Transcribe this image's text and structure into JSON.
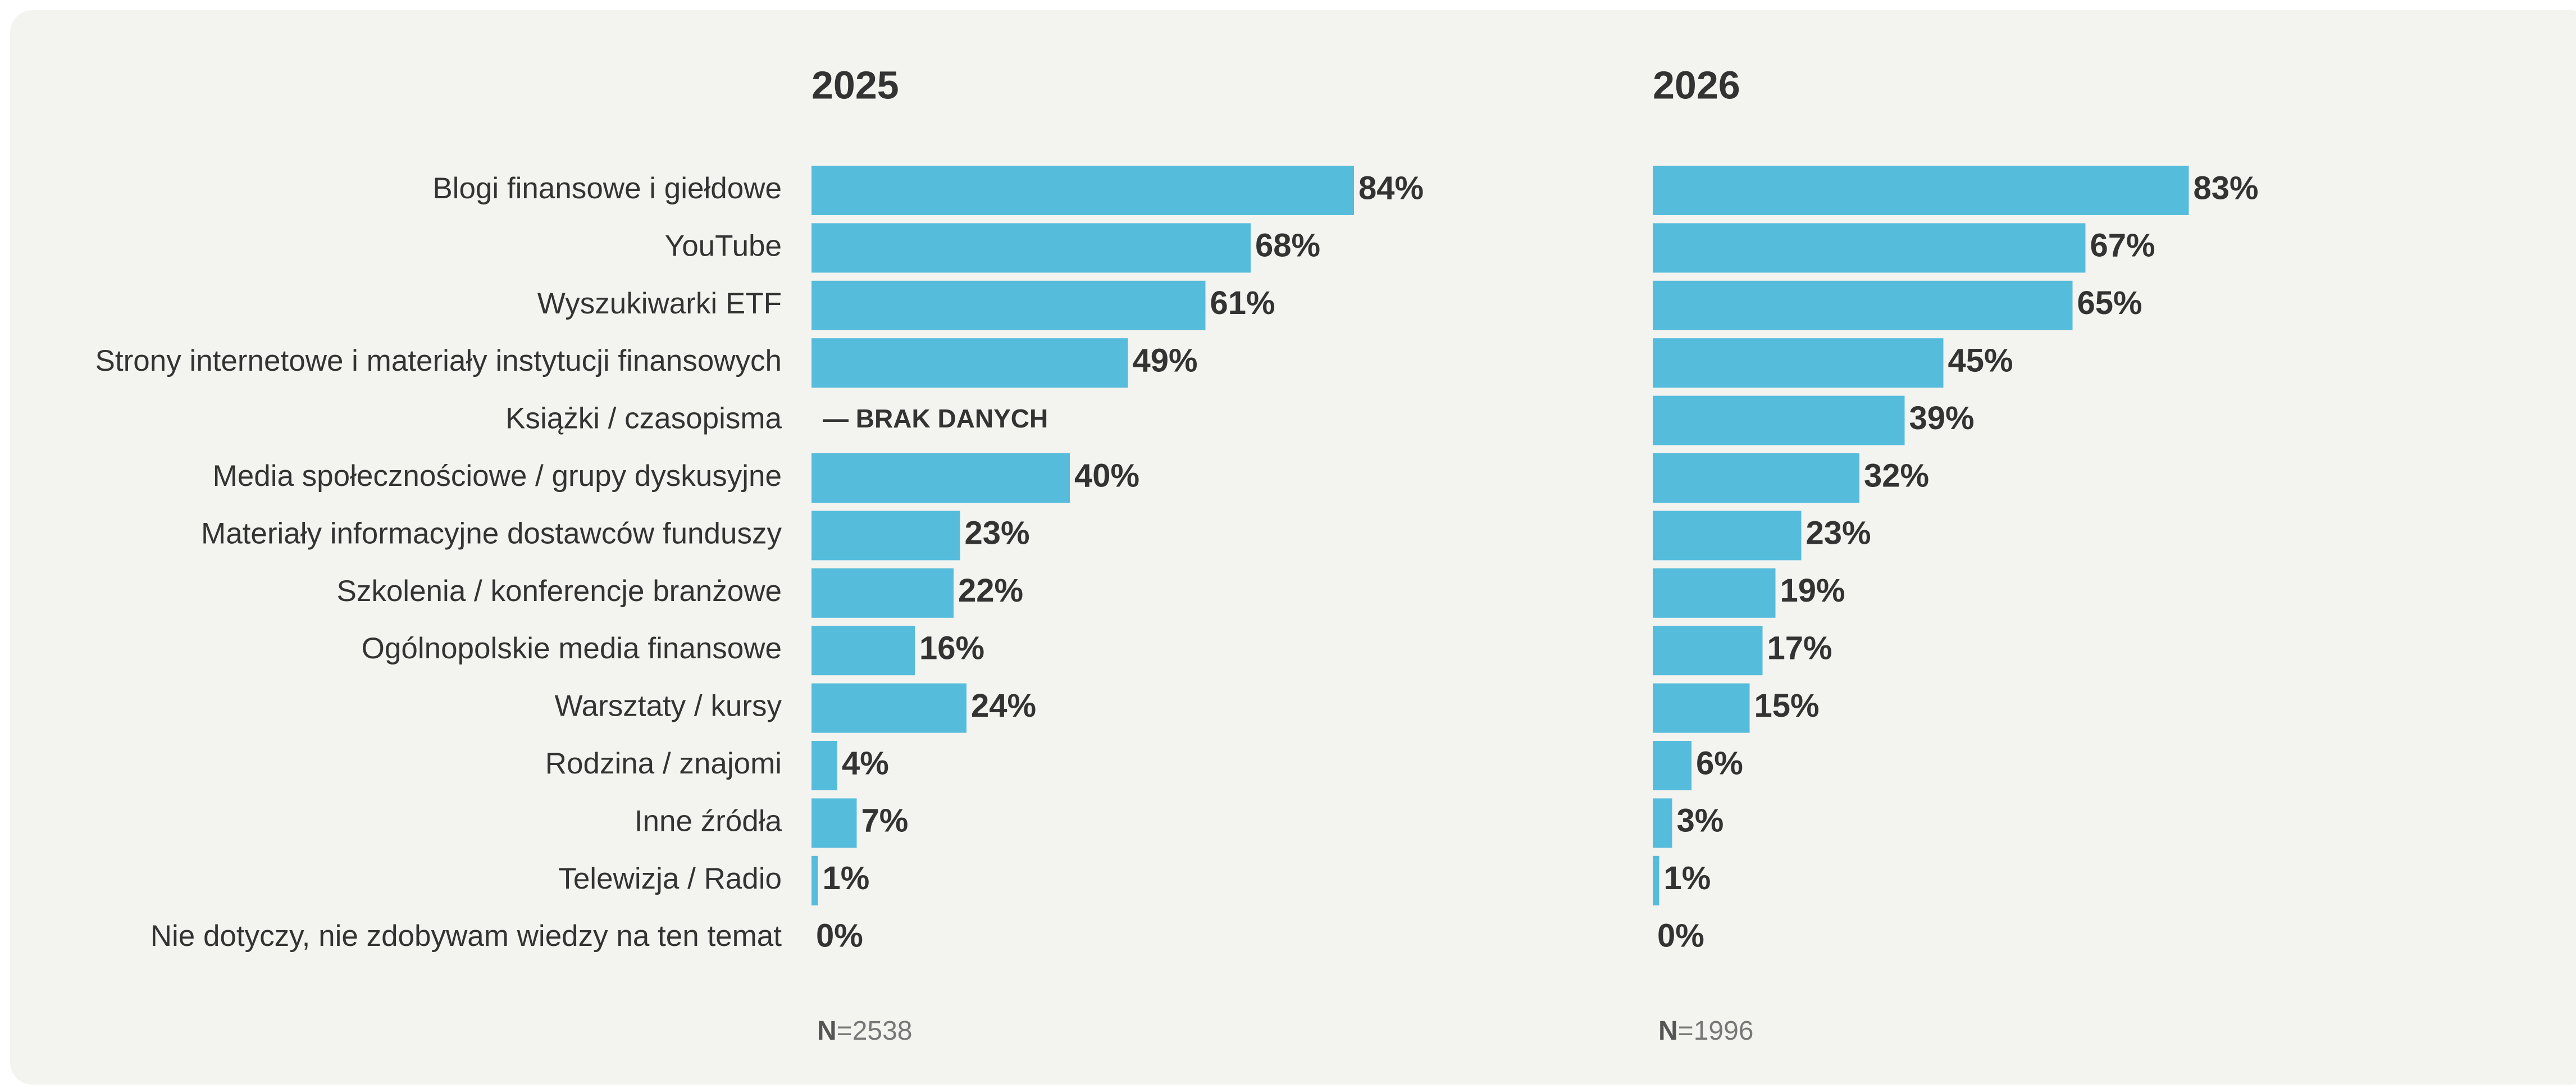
{
  "chart_data": [
    {
      "type": "bar",
      "orientation": "horizontal",
      "title": "2025",
      "categories": [
        "Blogi finansowe i giełdowe",
        "YouTube",
        "Wyszukiwarki ETF",
        "Strony internetowe i materiały instytucji finansowych",
        "Książki / czasopisma",
        "Media społecznościowe / grupy dyskusyjne",
        "Materiały informacyjne dostawców funduszy",
        "Szkolenia / konferencje branżowe",
        "Ogólnopolskie media finansowe",
        "Warsztaty / kursy",
        "Rodzina / znajomi",
        "Inne źródła",
        "Telewizja / Radio",
        "Nie dotyczy, nie zdobywam wiedzy na ten temat"
      ],
      "values": [
        84,
        68,
        61,
        49,
        null,
        40,
        23,
        22,
        16,
        24,
        4,
        7,
        1,
        0
      ],
      "value_labels": [
        "84%",
        "68%",
        "61%",
        "49%",
        "— BRAK DANYCH",
        "40%",
        "23%",
        "22%",
        "16%",
        "24%",
        "4%",
        "7%",
        "1%",
        "0%"
      ],
      "color": "#56bcdc",
      "xlim": [
        0,
        100
      ],
      "note_prefix": "N",
      "note": "=2538"
    },
    {
      "type": "bar",
      "orientation": "horizontal",
      "title": "2026",
      "values": [
        83,
        67,
        65,
        45,
        39,
        32,
        23,
        19,
        17,
        15,
        6,
        3,
        1,
        0
      ],
      "value_labels": [
        "83%",
        "67%",
        "65%",
        "45%",
        "39%",
        "32%",
        "23%",
        "19%",
        "17%",
        "15%",
        "6%",
        "3%",
        "1%",
        "0%"
      ],
      "color": "#56bcdc",
      "xlim": [
        0,
        100
      ],
      "note_prefix": "N",
      "note": "=1996"
    }
  ]
}
